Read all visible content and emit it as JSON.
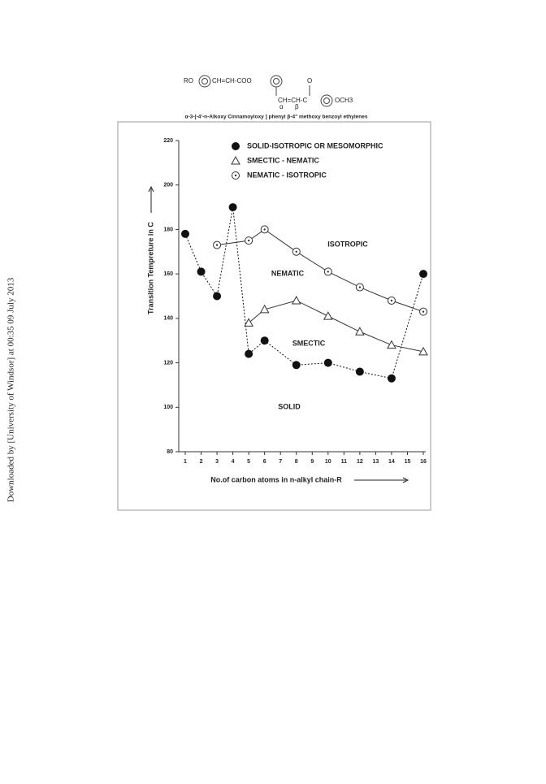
{
  "side_note": "Downloaded by [University of Windsor] at 00:35 09 July 2013",
  "structure": {
    "left_group": "RO",
    "linker": "CH=CH-COO",
    "side_chain": "CH=CH-C",
    "carbonyl_o": "O",
    "end_group": "OCH3",
    "alpha": "α",
    "beta": "β",
    "caption": "α-3-[-4'-n-Alkoxy Cinnamoyloxy ] phenyl β-4\" methoxy benzoyl ethylenes"
  },
  "chart_data": {
    "type": "scatter",
    "x_label": "No.of carbon atoms in n-alkyl chain-R",
    "y_label": "Transition Tempreture in C",
    "xlim": [
      1,
      16
    ],
    "xticks": [
      1,
      2,
      3,
      4,
      5,
      6,
      7,
      8,
      9,
      10,
      11,
      12,
      13,
      14,
      15,
      16
    ],
    "ylim": [
      80,
      220
    ],
    "yticks": [
      80,
      100,
      120,
      140,
      160,
      180,
      200,
      220
    ],
    "annotations": [
      "ISOTROPIC",
      "NEMATIC",
      "SMECTIC",
      "SOLID"
    ],
    "series": [
      {
        "name": "SOLID-ISOTROPIC OR MESOMORPHIC",
        "color": "#111111",
        "marker": "filled",
        "line": "dotted",
        "x": [
          1,
          2,
          3,
          4,
          5,
          6,
          8,
          10,
          12,
          14,
          16
        ],
        "values": [
          178,
          161,
          150,
          190,
          124,
          130,
          119,
          120,
          116,
          113,
          160
        ]
      },
      {
        "name": "SMECTIC - NEMATIC",
        "color": "#333333",
        "marker": "triangle",
        "line": "solid",
        "x": [
          5,
          6,
          8,
          10,
          12,
          14,
          16
        ],
        "values": [
          138,
          144,
          148,
          141,
          134,
          128,
          125
        ]
      },
      {
        "name": "NEMATIC - ISOTROPIC",
        "color": "#333333",
        "marker": "dot-circle",
        "line": "solid",
        "x": [
          3,
          5,
          6,
          8,
          10,
          12,
          14,
          16
        ],
        "values": [
          173,
          175,
          180,
          170,
          161,
          154,
          148,
          143
        ]
      }
    ]
  }
}
